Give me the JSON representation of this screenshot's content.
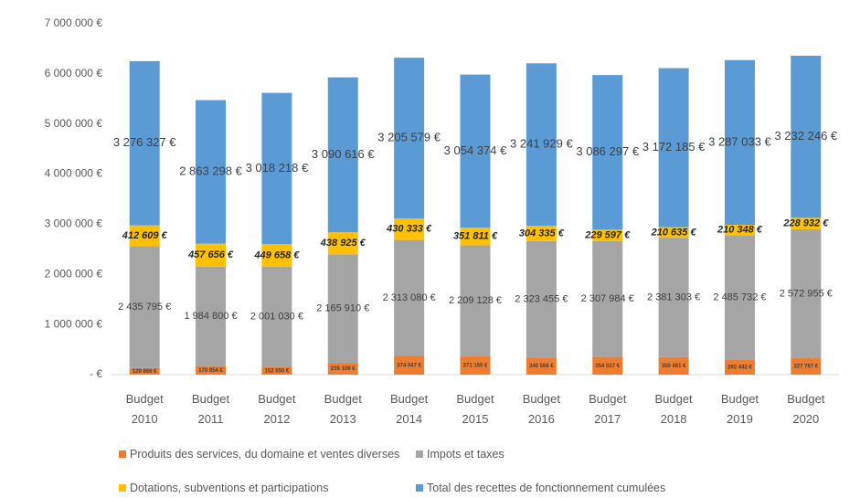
{
  "chart_data": {
    "type": "stacked_bar",
    "categories": [
      "Budget 2010",
      "Budget 2011",
      "Budget 2012",
      "Budget 2013",
      "Budget 2014",
      "Budget 2015",
      "Budget 2016",
      "Budget 2017",
      "Budget 2018",
      "Budget 2019",
      "Budget 2020"
    ],
    "series": [
      {
        "name": "Produits des services, du domaine et ventes diverses",
        "color": "#ed7d31",
        "values": [
          129866,
          170954,
          152050,
          235109,
          374047,
          371150,
          340566,
          354027,
          350481,
          292442,
          327767
        ],
        "value_labels": [
          "129 866 €",
          "170 954 €",
          "152 050 €",
          "235 109 €",
          "374 047 €",
          "371 150 €",
          "340 566 €",
          "354 027 €",
          "350 481 €",
          "292 442 €",
          "327 767 €"
        ]
      },
      {
        "name": "Impots et taxes",
        "color": "#a5a5a5",
        "values": [
          2435795,
          1984800,
          2001030,
          2165910,
          2313080,
          2209128,
          2323455,
          2307984,
          2381303,
          2485732,
          2572955
        ],
        "value_labels": [
          "2 435 795 €",
          "1 984 800 €",
          "2 001 030 €",
          "2 165 910 €",
          "2 313 080 €",
          "2 209 128 €",
          "2 323 455 €",
          "2 307 984 €",
          "2 381 303 €",
          "2 485 732 €",
          "2 572 955 €"
        ]
      },
      {
        "name": "Dotations, subventions et participations",
        "color": "#ffc000",
        "values": [
          412609,
          457656,
          449658,
          438925,
          430333,
          351811,
          304335,
          229597,
          210635,
          210348,
          228932
        ],
        "value_labels": [
          "412 609 €",
          "457 656 €",
          "449 658 €",
          "438 925 €",
          "430 333 €",
          "351 811 €",
          "304 335 €",
          "229 597 €",
          "210 635 €",
          "210 348 €",
          "228 932 €"
        ]
      },
      {
        "name": "Total des recettes de fonctionnement cumulées",
        "color": "#5b9bd5",
        "values": [
          3276327,
          2863298,
          3018218,
          3090616,
          3205579,
          3054374,
          3241929,
          3086297,
          3172185,
          3287033,
          3232246
        ],
        "value_labels": [
          "3 276 327 €",
          "2 863 298 €",
          "3 018 218 €",
          "3 090 616 €",
          "3 205 579 €",
          "3 054 374 €",
          "3 241 929 €",
          "3 086 297 €",
          "3 172 185 €",
          "3 287 033 €",
          "3 232 246 €"
        ]
      }
    ],
    "ylim": [
      0,
      7000000
    ],
    "yticks": [
      {
        "value": 0,
        "label": "-   €"
      },
      {
        "value": 1000000,
        "label": "1 000 000 €"
      },
      {
        "value": 2000000,
        "label": "2 000 000 €"
      },
      {
        "value": 3000000,
        "label": "3 000 000 €"
      },
      {
        "value": 4000000,
        "label": "4 000 000 €"
      },
      {
        "value": 5000000,
        "label": "5 000 000 €"
      },
      {
        "value": 6000000,
        "label": "6 000 000 €"
      },
      {
        "value": 7000000,
        "label": "7 000 000 €"
      }
    ],
    "grid": false,
    "legend": "bottom"
  }
}
